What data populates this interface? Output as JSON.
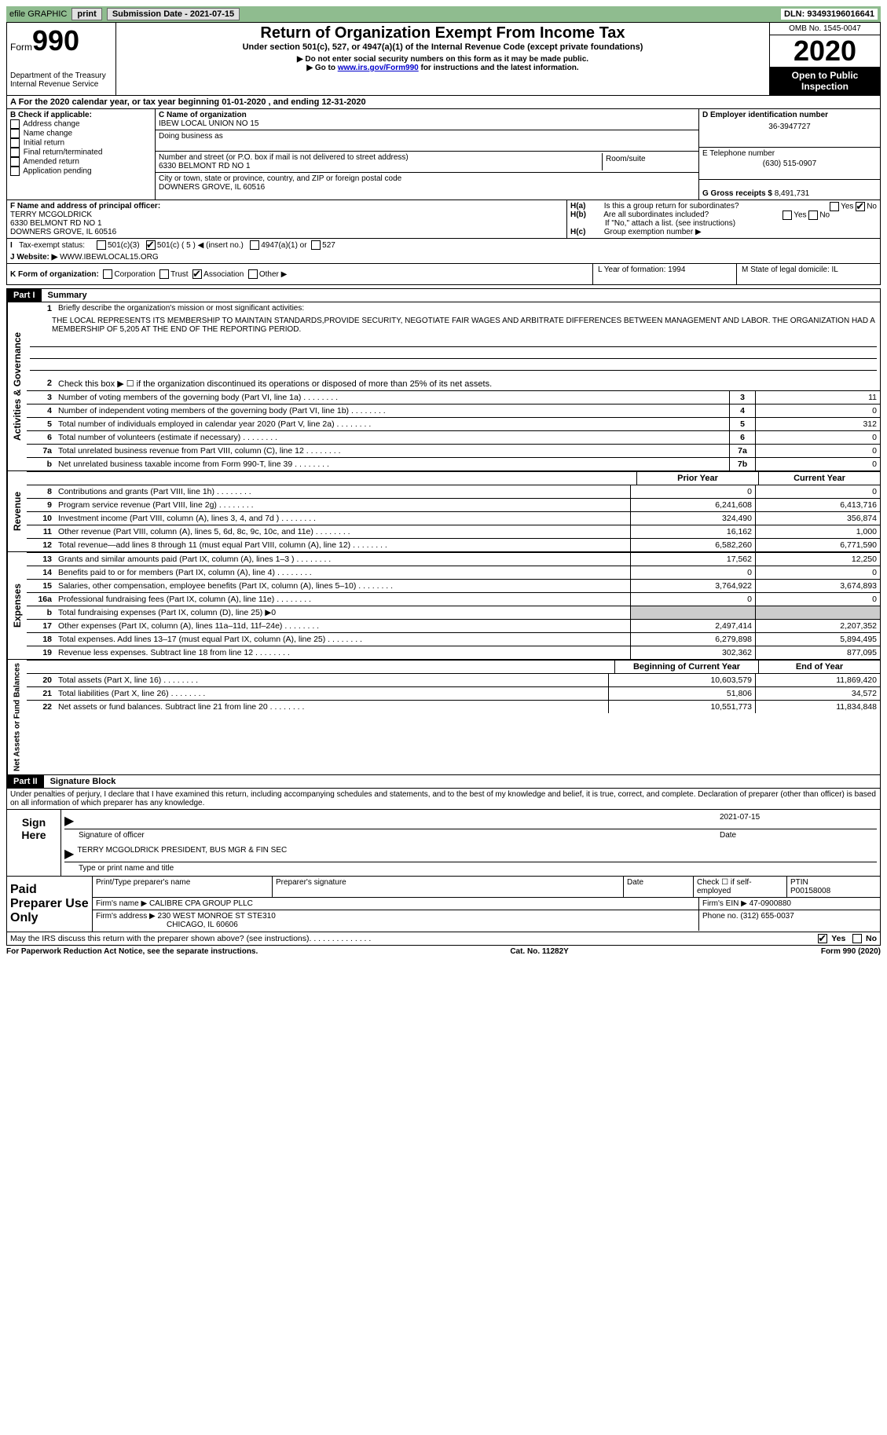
{
  "topbar": {
    "efile": "efile GRAPHIC",
    "print": "print",
    "submission": "Submission Date - 2021-07-15",
    "dln": "DLN: 93493196016641"
  },
  "header": {
    "form_prefix": "Form",
    "form_number": "990",
    "dept1": "Department of the Treasury",
    "dept2": "Internal Revenue Service",
    "title": "Return of Organization Exempt From Income Tax",
    "subtitle": "Under section 501(c), 527, or 4947(a)(1) of the Internal Revenue Code (except private foundations)",
    "note1": "▶ Do not enter social security numbers on this form as it may be made public.",
    "note2_pre": "▶ Go to ",
    "note2_link": "www.irs.gov/Form990",
    "note2_post": " for instructions and the latest information.",
    "omb": "OMB No. 1545-0047",
    "year": "2020",
    "inspection1": "Open to Public",
    "inspection2": "Inspection"
  },
  "sectionA": "A For the 2020 calendar year, or tax year beginning 01-01-2020   , and ending 12-31-2020",
  "colB": {
    "title": "B Check if applicable:",
    "opt1": "Address change",
    "opt2": "Name change",
    "opt3": "Initial return",
    "opt4": "Final return/terminated",
    "opt5": "Amended return",
    "opt6": "Application pending"
  },
  "colC": {
    "name_label": "C Name of organization",
    "name": "IBEW LOCAL UNION NO 15",
    "dba_label": "Doing business as",
    "dba": "",
    "street_label": "Number and street (or P.O. box if mail is not delivered to street address)",
    "street": "6330 BELMONT RD NO 1",
    "room_label": "Room/suite",
    "city_label": "City or town, state or province, country, and ZIP or foreign postal code",
    "city": "DOWNERS GROVE, IL  60516"
  },
  "colD": {
    "ein_label": "D Employer identification number",
    "ein": "36-3947727",
    "phone_label": "E Telephone number",
    "phone": "(630) 515-0907",
    "gross_label": "G Gross receipts $",
    "gross": "8,491,731"
  },
  "sectionF": {
    "label": "F Name and address of principal officer:",
    "name": "TERRY MCGOLDRICK",
    "addr1": "6330 BELMONT RD NO 1",
    "addr2": "DOWNERS GROVE, IL  60516"
  },
  "sectionH": {
    "ha": "Is this a group return for subordinates?",
    "hb": "Are all subordinates included?",
    "hb_note": "If \"No,\" attach a list. (see instructions)",
    "hc": "Group exemption number ▶"
  },
  "taxExempt": {
    "label": "Tax-exempt status:",
    "opt1": "501(c)(3)",
    "opt2": "501(c) ( 5 ) ◀ (insert no.)",
    "opt3": "4947(a)(1) or",
    "opt4": "527"
  },
  "website": {
    "label": "J   Website: ▶",
    "value": "WWW.IBEWLOCAL15.ORG"
  },
  "sectionK": {
    "label": "K Form of organization:",
    "opt1": "Corporation",
    "opt2": "Trust",
    "opt3": "Association",
    "opt4": "Other ▶"
  },
  "sectionL": "L Year of formation: 1994",
  "sectionM": "M State of legal domicile: IL",
  "part1": {
    "header": "Part I",
    "title": "Summary",
    "label_ag": "Activities & Governance",
    "label_rev": "Revenue",
    "label_exp": "Expenses",
    "label_net": "Net Assets or Fund Balances",
    "mission_label": "Briefly describe the organization's mission or most significant activities:",
    "mission": "THE LOCAL REPRESENTS ITS MEMBERSHIP TO MAINTAIN STANDARDS,PROVIDE SECURITY, NEGOTIATE FAIR WAGES AND ARBITRATE DIFFERENCES BETWEEN MANAGEMENT AND LABOR. THE ORGANIZATION HAD A MEMBERSHIP OF 5,205 AT THE END OF THE REPORTING PERIOD.",
    "line2": "Check this box ▶ ☐  if the organization discontinued its operations or disposed of more than 25% of its net assets.",
    "lines": [
      {
        "n": "3",
        "label": "Number of voting members of the governing body (Part VI, line 1a)",
        "ref": "3",
        "val": "11"
      },
      {
        "n": "4",
        "label": "Number of independent voting members of the governing body (Part VI, line 1b)",
        "ref": "4",
        "val": "0"
      },
      {
        "n": "5",
        "label": "Total number of individuals employed in calendar year 2020 (Part V, line 2a)",
        "ref": "5",
        "val": "312"
      },
      {
        "n": "6",
        "label": "Total number of volunteers (estimate if necessary)",
        "ref": "6",
        "val": "0"
      },
      {
        "n": "7a",
        "label": "Total unrelated business revenue from Part VIII, column (C), line 12",
        "ref": "7a",
        "val": "0"
      },
      {
        "n": "b",
        "label": "Net unrelated business taxable income from Form 990-T, line 39",
        "ref": "7b",
        "val": "0"
      }
    ],
    "prior_year": "Prior Year",
    "current_year": "Current Year",
    "revenue": [
      {
        "n": "8",
        "label": "Contributions and grants (Part VIII, line 1h)",
        "v1": "0",
        "v2": "0"
      },
      {
        "n": "9",
        "label": "Program service revenue (Part VIII, line 2g)",
        "v1": "6,241,608",
        "v2": "6,413,716"
      },
      {
        "n": "10",
        "label": "Investment income (Part VIII, column (A), lines 3, 4, and 7d )",
        "v1": "324,490",
        "v2": "356,874"
      },
      {
        "n": "11",
        "label": "Other revenue (Part VIII, column (A), lines 5, 6d, 8c, 9c, 10c, and 11e)",
        "v1": "16,162",
        "v2": "1,000"
      },
      {
        "n": "12",
        "label": "Total revenue—add lines 8 through 11 (must equal Part VIII, column (A), line 12)",
        "v1": "6,582,260",
        "v2": "6,771,590"
      }
    ],
    "expenses": [
      {
        "n": "13",
        "label": "Grants and similar amounts paid (Part IX, column (A), lines 1–3 )",
        "v1": "17,562",
        "v2": "12,250"
      },
      {
        "n": "14",
        "label": "Benefits paid to or for members (Part IX, column (A), line 4)",
        "v1": "0",
        "v2": "0"
      },
      {
        "n": "15",
        "label": "Salaries, other compensation, employee benefits (Part IX, column (A), lines 5–10)",
        "v1": "3,764,922",
        "v2": "3,674,893"
      },
      {
        "n": "16a",
        "label": "Professional fundraising fees (Part IX, column (A), line 11e)",
        "v1": "0",
        "v2": "0"
      },
      {
        "n": "b",
        "label": "Total fundraising expenses (Part IX, column (D), line 25) ▶0",
        "v1": "",
        "v2": "",
        "grey": true
      },
      {
        "n": "17",
        "label": "Other expenses (Part IX, column (A), lines 11a–11d, 11f–24e)",
        "v1": "2,497,414",
        "v2": "2,207,352"
      },
      {
        "n": "18",
        "label": "Total expenses. Add lines 13–17 (must equal Part IX, column (A), line 25)",
        "v1": "6,279,898",
        "v2": "5,894,495"
      },
      {
        "n": "19",
        "label": "Revenue less expenses. Subtract line 18 from line 12",
        "v1": "302,362",
        "v2": "877,095"
      }
    ],
    "begin_year": "Beginning of Current Year",
    "end_year": "End of Year",
    "netassets": [
      {
        "n": "20",
        "label": "Total assets (Part X, line 16)",
        "v1": "10,603,579",
        "v2": "11,869,420"
      },
      {
        "n": "21",
        "label": "Total liabilities (Part X, line 26)",
        "v1": "51,806",
        "v2": "34,572"
      },
      {
        "n": "22",
        "label": "Net assets or fund balances. Subtract line 21 from line 20",
        "v1": "10,551,773",
        "v2": "11,834,848"
      }
    ]
  },
  "part2": {
    "header": "Part II",
    "title": "Signature Block",
    "declare": "Under penalties of perjury, I declare that I have examined this return, including accompanying schedules and statements, and to the best of my knowledge and belief, it is true, correct, and complete. Declaration of preparer (other than officer) is based on all information of which preparer has any knowledge.",
    "sign_here": "Sign Here",
    "sig_officer": "Signature of officer",
    "sig_date": "2021-07-15",
    "date_label": "Date",
    "officer_name": "TERRY MCGOLDRICK  PRESIDENT, BUS MGR & FIN SEC",
    "officer_title_label": "Type or print name and title",
    "paid_prep": "Paid Preparer Use Only",
    "prep_name_label": "Print/Type preparer's name",
    "prep_sig_label": "Preparer's signature",
    "prep_date_label": "Date",
    "check_if": "Check ☐ if self-employed",
    "ptin_label": "PTIN",
    "ptin": "P00158008",
    "firm_name_label": "Firm's name   ▶",
    "firm_name": "CALIBRE CPA GROUP PLLC",
    "firm_ein_label": "Firm's EIN ▶",
    "firm_ein": "47-0900880",
    "firm_addr_label": "Firm's address ▶",
    "firm_addr1": "230 WEST MONROE ST STE310",
    "firm_addr2": "CHICAGO, IL  60606",
    "phone_label": "Phone no.",
    "phone": "(312) 655-0037"
  },
  "discuss": "May the IRS discuss this return with the preparer shown above? (see instructions)",
  "yes": "Yes",
  "no": "No",
  "footer": {
    "left": "For Paperwork Reduction Act Notice, see the separate instructions.",
    "mid": "Cat. No. 11282Y",
    "right": "Form 990 (2020)"
  }
}
